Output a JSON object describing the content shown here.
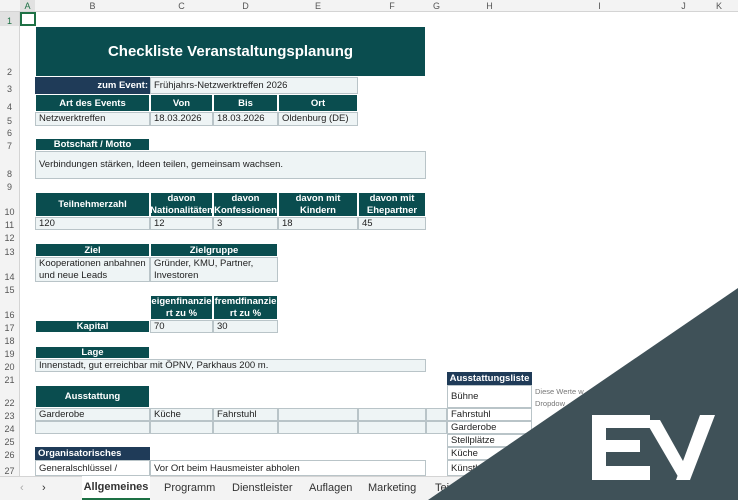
{
  "columns": [
    "A",
    "B",
    "C",
    "D",
    "E",
    "F",
    "G",
    "H",
    "I",
    "J",
    "K"
  ],
  "rows": [
    "1",
    "2",
    "3",
    "4",
    "5",
    "6",
    "7",
    "8",
    "9",
    "10",
    "11",
    "12",
    "13",
    "14",
    "15",
    "16",
    "17",
    "18",
    "19",
    "20",
    "21",
    "22",
    "23",
    "24",
    "25",
    "26",
    "27"
  ],
  "title": "Checkliste Veranstaltungsplanung",
  "event": {
    "label": "zum Event:",
    "value": "Frühjahrs-Netzwerktreffen 2026"
  },
  "details": {
    "headers": [
      "Art des Events",
      "Von",
      "Bis",
      "Ort"
    ],
    "values": [
      "Netzwerktreffen",
      "18.03.2026",
      "18.03.2026",
      "Oldenburg (DE)"
    ]
  },
  "motto": {
    "label": "Botschaft / Motto",
    "value": "Verbindungen stärken, Ideen teilen, gemeinsam wachsen."
  },
  "participants": {
    "headers": [
      "Teilnehmerzahl",
      "davon Nationalitäten",
      "davon Konfessionen",
      "davon mit Kindern",
      "davon mit Ehepartner"
    ],
    "values": [
      "120",
      "12",
      "3",
      "18",
      "45"
    ]
  },
  "goal": {
    "headers": [
      "Ziel",
      "Zielgruppe"
    ],
    "values": [
      "Kooperationen anbahnen und neue Leads",
      "Gründer, KMU, Partner, Investoren"
    ]
  },
  "capital": {
    "label": "Kapital",
    "headers": [
      "eigenfinanziert zu %",
      "fremdfinanziert zu %"
    ],
    "values": [
      "70",
      "30"
    ]
  },
  "location": {
    "label": "Lage",
    "value": "Innenstadt, gut erreichbar mit ÖPNV, Parkhaus 200 m."
  },
  "equipment": {
    "label": "Ausstattung",
    "values": [
      "Garderobe",
      "Küche",
      "Fahrstuhl"
    ]
  },
  "organisation": {
    "label": "Organisatorisches",
    "key": "Generalschlüssel /",
    "value": "Vor Ort beim Hausmeister abholen"
  },
  "equipment_list": {
    "label": "Ausstattungsliste",
    "items": [
      "Bühne",
      "Fahrstuhl",
      "Garderobe",
      "Stellplätze",
      "Küche",
      "Künstl"
    ],
    "note1": "Diese Werte w",
    "note2": "Dropdow"
  },
  "sheet_tabs": {
    "prev": "‹",
    "next": "›",
    "tabs": [
      "Allgemeines",
      "Programm",
      "Dienstleister",
      "Auflagen",
      "Marketing",
      "Tei"
    ],
    "active": "Allgemeines"
  },
  "colors": {
    "teal": "#0a4d4f",
    "navy": "#1f3b58",
    "overlay": "#3f5158"
  },
  "logo": {
    "icon": "ev-logo"
  }
}
